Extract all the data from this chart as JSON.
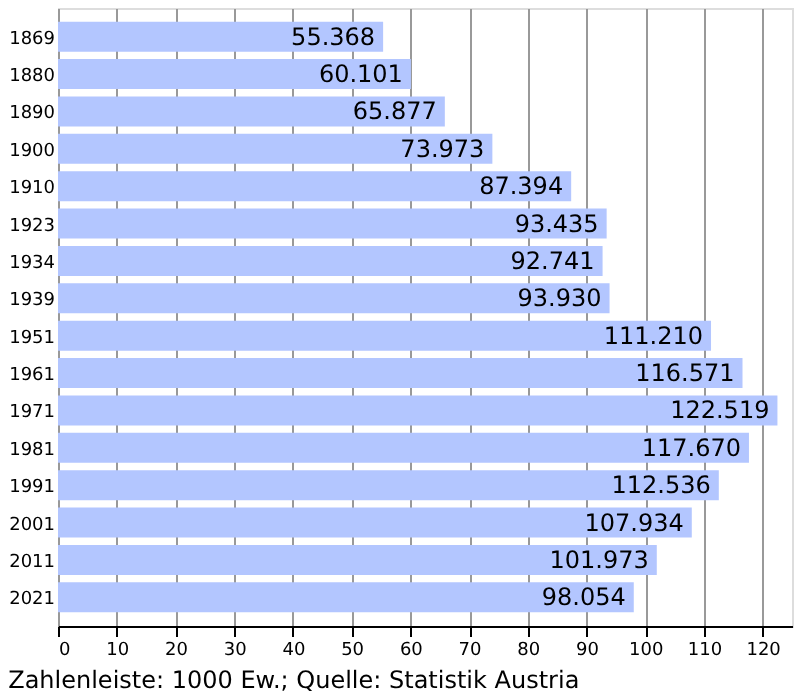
{
  "chart_data": {
    "type": "bar",
    "orientation": "horizontal",
    "categories": [
      "1869",
      "1880",
      "1890",
      "1900",
      "1910",
      "1923",
      "1934",
      "1939",
      "1951",
      "1961",
      "1971",
      "1981",
      "1991",
      "2001",
      "2011",
      "2021"
    ],
    "values": [
      55.368,
      60.101,
      65.877,
      73.973,
      87.394,
      93.435,
      92.741,
      93.93,
      111.21,
      116.571,
      122.519,
      117.67,
      112.536,
      107.934,
      101.973,
      98.054
    ],
    "color": "#b3c6ff",
    "xlim": [
      0,
      125
    ],
    "xticks": [
      0,
      10,
      20,
      30,
      40,
      50,
      60,
      70,
      80,
      90,
      100,
      110,
      120
    ],
    "value_labels": [
      "55.368",
      "60.101",
      "65.877",
      "73.973",
      "87.394",
      "93.435",
      "92.741",
      "93.930",
      "111.210",
      "116.571",
      "122.519",
      "117.670",
      "112.536",
      "107.934",
      "101.973",
      "98.054"
    ],
    "grid": "x",
    "annotations": [
      "Zahlenleiste: 1000 Ew.; Quelle: Statistik Austria"
    ]
  }
}
